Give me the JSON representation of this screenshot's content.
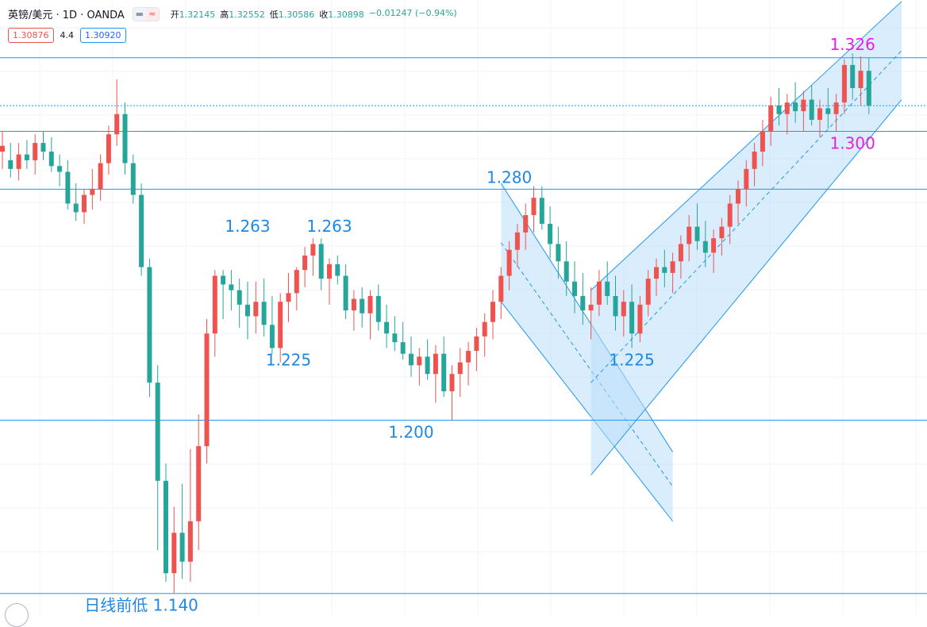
{
  "header": {
    "symbol": "英镑/美元 · 1D · OANDA",
    "toggle_left": "▬",
    "toggle_right": "≈",
    "open_label": "开",
    "open": "1.32145",
    "high_label": "高",
    "high": "1.32552",
    "low_label": "低",
    "low": "1.30586",
    "close_label": "收",
    "close": "1.30898",
    "change": "−0.01247 (−0.94%)"
  },
  "quote": {
    "bid": "1.30876",
    "spread": "4.4",
    "ask": "1.30920"
  },
  "colors": {
    "up": "#ef5350",
    "down": "#26a69a",
    "level": "#2196f3",
    "annot": "#1e88e5",
    "highlight": "#e91ee3",
    "channel": "#bbdefb"
  },
  "annotations": [
    {
      "text": "1.263",
      "price": 1.263,
      "bar": 30,
      "pos": "above"
    },
    {
      "text": "1.263",
      "price": 1.263,
      "bar": 40,
      "pos": "above"
    },
    {
      "text": "1.225",
      "price": 1.225,
      "bar": 35,
      "pos": "below"
    },
    {
      "text": "1.200",
      "price": 1.2,
      "bar": 50,
      "pos": "below"
    },
    {
      "text": "1.280",
      "price": 1.28,
      "bar": 62,
      "pos": "above"
    },
    {
      "text": "1.225",
      "price": 1.225,
      "bar": 77,
      "pos": "below"
    },
    {
      "text": "1.326",
      "price": 1.326,
      "bar": 104,
      "pos": "above",
      "color": "#e91ee3"
    },
    {
      "text": "1.300",
      "price": 1.3,
      "bar": 104,
      "pos": "below",
      "color": "#e91ee3"
    },
    {
      "text": "日线前低 1.140",
      "price": 1.14,
      "bar": 17,
      "pos": "below"
    }
  ],
  "chart_data": {
    "type": "candlestick",
    "horizontal_levels": [
      1.3255,
      1.3089,
      1.3,
      1.28,
      1.2,
      1.14
    ],
    "ylim": [
      1.1325,
      1.3455
    ],
    "descending_channel": {
      "start_bar": 61,
      "end_bar": 82,
      "upper": [
        1.282,
        1.189
      ],
      "lower": [
        1.241,
        1.165
      ]
    },
    "ascending_channel": {
      "start_bar": 72,
      "end_bar": 110,
      "upper": [
        1.245,
        1.345
      ],
      "lower": [
        1.181,
        1.311
      ]
    },
    "candles": [
      [
        1.293,
        1.3,
        1.287,
        1.295
      ],
      [
        1.29,
        1.296,
        1.284,
        1.287
      ],
      [
        1.287,
        1.296,
        1.283,
        1.292
      ],
      [
        1.292,
        1.297,
        1.287,
        1.29
      ],
      [
        1.29,
        1.299,
        1.285,
        1.296
      ],
      [
        1.296,
        1.3,
        1.29,
        1.293
      ],
      [
        1.293,
        1.298,
        1.286,
        1.288
      ],
      [
        1.288,
        1.292,
        1.281,
        1.286
      ],
      [
        1.286,
        1.29,
        1.273,
        1.275
      ],
      [
        1.275,
        1.282,
        1.269,
        1.272
      ],
      [
        1.272,
        1.28,
        1.268,
        1.278
      ],
      [
        1.278,
        1.287,
        1.273,
        1.28
      ],
      [
        1.28,
        1.292,
        1.276,
        1.289
      ],
      [
        1.289,
        1.302,
        1.285,
        1.299
      ],
      [
        1.299,
        1.318,
        1.295,
        1.306
      ],
      [
        1.306,
        1.31,
        1.285,
        1.289
      ],
      [
        1.289,
        1.292,
        1.275,
        1.278
      ],
      [
        1.278,
        1.282,
        1.25,
        1.253
      ],
      [
        1.253,
        1.256,
        1.208,
        1.213
      ],
      [
        1.213,
        1.219,
        1.155,
        1.179
      ],
      [
        1.179,
        1.185,
        1.144,
        1.147
      ],
      [
        1.147,
        1.17,
        1.14,
        1.161
      ],
      [
        1.161,
        1.178,
        1.145,
        1.151
      ],
      [
        1.151,
        1.19,
        1.144,
        1.165
      ],
      [
        1.165,
        1.202,
        1.155,
        1.191
      ],
      [
        1.191,
        1.235,
        1.185,
        1.23
      ],
      [
        1.23,
        1.252,
        1.222,
        1.25
      ],
      [
        1.25,
        1.252,
        1.235,
        1.247
      ],
      [
        1.247,
        1.252,
        1.238,
        1.245
      ],
      [
        1.245,
        1.249,
        1.232,
        1.24
      ],
      [
        1.24,
        1.248,
        1.228,
        1.236
      ],
      [
        1.236,
        1.248,
        1.23,
        1.241
      ],
      [
        1.241,
        1.249,
        1.229,
        1.233
      ],
      [
        1.233,
        1.243,
        1.223,
        1.225
      ],
      [
        1.225,
        1.244,
        1.22,
        1.241
      ],
      [
        1.241,
        1.251,
        1.234,
        1.244
      ],
      [
        1.244,
        1.253,
        1.238,
        1.252
      ],
      [
        1.252,
        1.26,
        1.246,
        1.257
      ],
      [
        1.257,
        1.263,
        1.25,
        1.261
      ],
      [
        1.261,
        1.263,
        1.245,
        1.249
      ],
      [
        1.249,
        1.256,
        1.24,
        1.254
      ],
      [
        1.254,
        1.257,
        1.247,
        1.25
      ],
      [
        1.25,
        1.254,
        1.235,
        1.238
      ],
      [
        1.238,
        1.245,
        1.231,
        1.242
      ],
      [
        1.242,
        1.246,
        1.232,
        1.237
      ],
      [
        1.237,
        1.245,
        1.228,
        1.243
      ],
      [
        1.243,
        1.247,
        1.231,
        1.234
      ],
      [
        1.234,
        1.24,
        1.225,
        1.23
      ],
      [
        1.23,
        1.236,
        1.224,
        1.227
      ],
      [
        1.227,
        1.234,
        1.221,
        1.223
      ],
      [
        1.223,
        1.229,
        1.215,
        1.219
      ],
      [
        1.219,
        1.225,
        1.212,
        1.222
      ],
      [
        1.222,
        1.228,
        1.214,
        1.216
      ],
      [
        1.216,
        1.226,
        1.206,
        1.223
      ],
      [
        1.223,
        1.229,
        1.208,
        1.21
      ],
      [
        1.21,
        1.219,
        1.2,
        1.216
      ],
      [
        1.216,
        1.225,
        1.208,
        1.22
      ],
      [
        1.22,
        1.227,
        1.212,
        1.224
      ],
      [
        1.224,
        1.232,
        1.217,
        1.229
      ],
      [
        1.229,
        1.237,
        1.222,
        1.234
      ],
      [
        1.234,
        1.245,
        1.228,
        1.241
      ],
      [
        1.241,
        1.253,
        1.235,
        1.25
      ],
      [
        1.25,
        1.262,
        1.245,
        1.259
      ],
      [
        1.259,
        1.268,
        1.253,
        1.265
      ],
      [
        1.265,
        1.275,
        1.259,
        1.271
      ],
      [
        1.271,
        1.281,
        1.265,
        1.277
      ],
      [
        1.277,
        1.281,
        1.266,
        1.268
      ],
      [
        1.268,
        1.274,
        1.256,
        1.261
      ],
      [
        1.261,
        1.267,
        1.249,
        1.255
      ],
      [
        1.255,
        1.262,
        1.243,
        1.248
      ],
      [
        1.248,
        1.255,
        1.237,
        1.243
      ],
      [
        1.243,
        1.251,
        1.233,
        1.238
      ],
      [
        1.238,
        1.246,
        1.228,
        1.24
      ],
      [
        1.24,
        1.252,
        1.236,
        1.248
      ],
      [
        1.248,
        1.255,
        1.24,
        1.243
      ],
      [
        1.243,
        1.25,
        1.231,
        1.236
      ],
      [
        1.236,
        1.245,
        1.229,
        1.241
      ],
      [
        1.241,
        1.247,
        1.225,
        1.23
      ],
      [
        1.23,
        1.243,
        1.227,
        1.24
      ],
      [
        1.24,
        1.252,
        1.236,
        1.249
      ],
      [
        1.249,
        1.256,
        1.243,
        1.253
      ],
      [
        1.253,
        1.259,
        1.246,
        1.251
      ],
      [
        1.251,
        1.258,
        1.244,
        1.255
      ],
      [
        1.255,
        1.264,
        1.249,
        1.261
      ],
      [
        1.261,
        1.271,
        1.255,
        1.267
      ],
      [
        1.267,
        1.275,
        1.259,
        1.262
      ],
      [
        1.262,
        1.269,
        1.253,
        1.258
      ],
      [
        1.258,
        1.266,
        1.251,
        1.263
      ],
      [
        1.263,
        1.27,
        1.257,
        1.267
      ],
      [
        1.267,
        1.278,
        1.261,
        1.275
      ],
      [
        1.275,
        1.283,
        1.268,
        1.28
      ],
      [
        1.28,
        1.29,
        1.274,
        1.287
      ],
      [
        1.287,
        1.296,
        1.281,
        1.293
      ],
      [
        1.293,
        1.304,
        1.288,
        1.3
      ],
      [
        1.3,
        1.312,
        1.295,
        1.309
      ],
      [
        1.309,
        1.315,
        1.302,
        1.306
      ],
      [
        1.306,
        1.313,
        1.299,
        1.31
      ],
      [
        1.31,
        1.317,
        1.303,
        1.307
      ],
      [
        1.307,
        1.314,
        1.3,
        1.311
      ],
      [
        1.311,
        1.316,
        1.302,
        1.304
      ],
      [
        1.304,
        1.311,
        1.298,
        1.308
      ],
      [
        1.308,
        1.315,
        1.301,
        1.306
      ],
      [
        1.306,
        1.313,
        1.3,
        1.31
      ],
      [
        1.31,
        1.325,
        1.306,
        1.323
      ],
      [
        1.323,
        1.327,
        1.311,
        1.315
      ],
      [
        1.315,
        1.326,
        1.309,
        1.321
      ],
      [
        1.321,
        1.3255,
        1.3059,
        1.309
      ]
    ]
  }
}
